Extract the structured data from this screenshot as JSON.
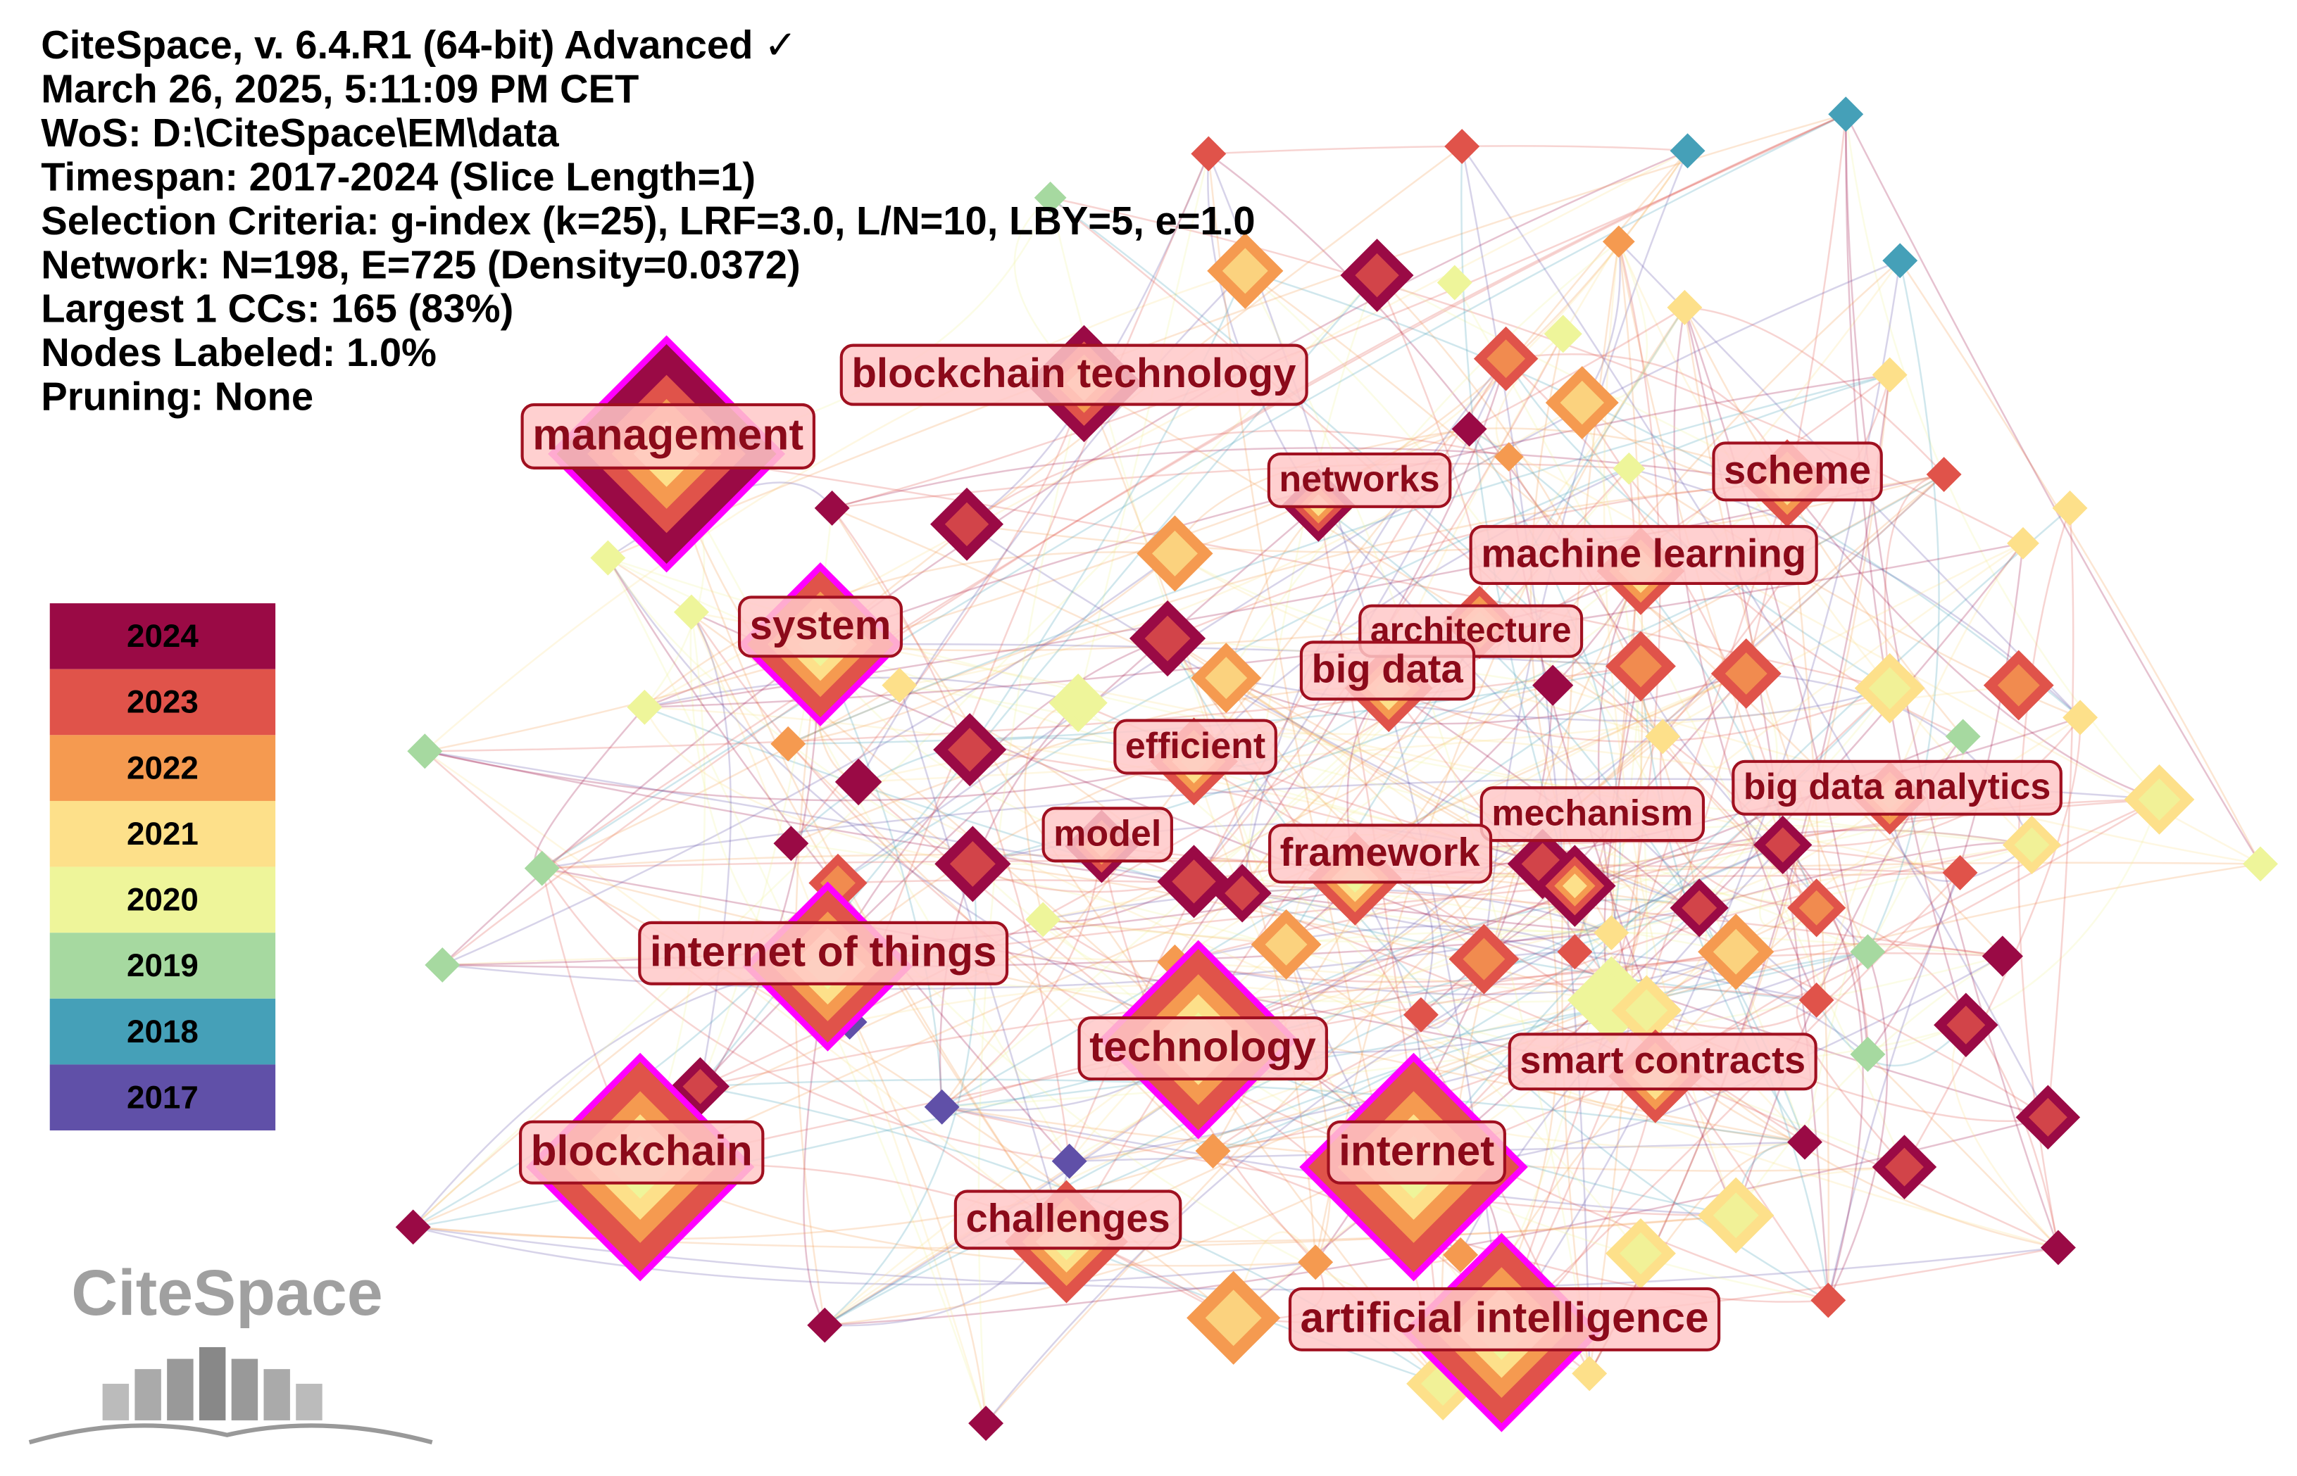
{
  "header": {
    "lines": [
      "CiteSpace, v. 6.4.R1 (64-bit) Advanced ✓",
      "March 26, 2025, 5:11:09 PM CET",
      "WoS: D:\\CiteSpace\\EM\\data",
      "Timespan: 2017-2024 (Slice Length=1)",
      "Selection Criteria: g-index (k=25), LRF=3.0, L/N=10, LBY=5, e=1.0",
      "Network: N=198, E=725 (Density=0.0372)",
      "Largest 1 CCs: 165 (83%)",
      "Nodes Labeled: 1.0%",
      "Pruning: None"
    ]
  },
  "legend": {
    "years": [
      "2024",
      "2023",
      "2022",
      "2021",
      "2020",
      "2019",
      "2018",
      "2017"
    ]
  },
  "logo": "CiteSpace",
  "nodes": [
    {
      "label": "management"
    },
    {
      "label": "blockchain technology"
    },
    {
      "label": "networks"
    },
    {
      "label": "scheme"
    },
    {
      "label": "machine learning"
    },
    {
      "label": "system"
    },
    {
      "label": "architecture"
    },
    {
      "label": "big data"
    },
    {
      "label": "efficient"
    },
    {
      "label": "big data analytics"
    },
    {
      "label": "mechanism"
    },
    {
      "label": "model"
    },
    {
      "label": "framework"
    },
    {
      "label": "internet of things"
    },
    {
      "label": "technology"
    },
    {
      "label": "smart contracts"
    },
    {
      "label": "blockchain"
    },
    {
      "label": "internet"
    },
    {
      "label": "challenges"
    },
    {
      "label": "artificial intelligence"
    }
  ]
}
